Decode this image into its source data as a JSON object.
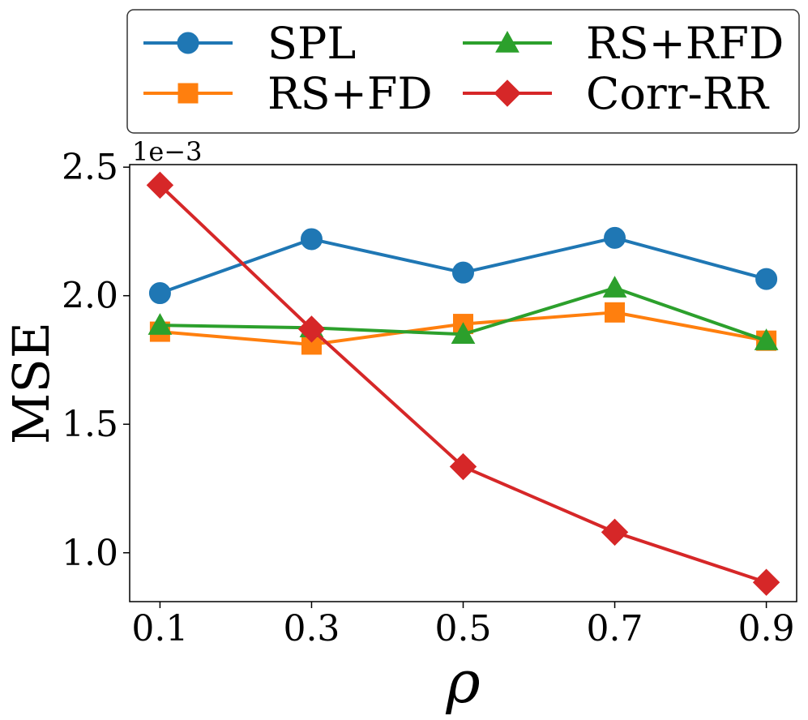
{
  "chart_data": {
    "type": "line",
    "title": "",
    "xlabel": "ρ",
    "ylabel": "MSE",
    "y_offset_label": "1e−3",
    "x": [
      0.1,
      0.3,
      0.5,
      0.7,
      0.9
    ],
    "x_tick_labels": [
      "0.1",
      "0.3",
      "0.5",
      "0.7",
      "0.9"
    ],
    "y_ticks": [
      1.0,
      1.5,
      2.0,
      2.5
    ],
    "y_tick_labels": [
      "1.0",
      "1.5",
      "2.0",
      "2.5"
    ],
    "xlim": [
      0.06,
      0.94
    ],
    "ylim": [
      0.81,
      2.51
    ],
    "y_scale_factor": 0.001,
    "grid": false,
    "legend_position": "top, outside plot, 2 columns",
    "series": [
      {
        "name": "SPL",
        "color": "#1f77b4",
        "marker": "circle",
        "values": [
          2.01,
          2.22,
          2.09,
          2.225,
          2.065
        ]
      },
      {
        "name": "RS+FD",
        "color": "#ff7f0e",
        "marker": "square",
        "values": [
          1.86,
          1.81,
          1.89,
          1.935,
          1.825
        ]
      },
      {
        "name": "RS+RFD",
        "color": "#2ca02c",
        "marker": "triangle",
        "values": [
          1.885,
          1.875,
          1.85,
          2.03,
          1.825
        ]
      },
      {
        "name": "Corr-RR",
        "color": "#d62728",
        "marker": "diamond",
        "values": [
          2.43,
          1.87,
          1.335,
          1.08,
          0.885
        ]
      }
    ]
  }
}
